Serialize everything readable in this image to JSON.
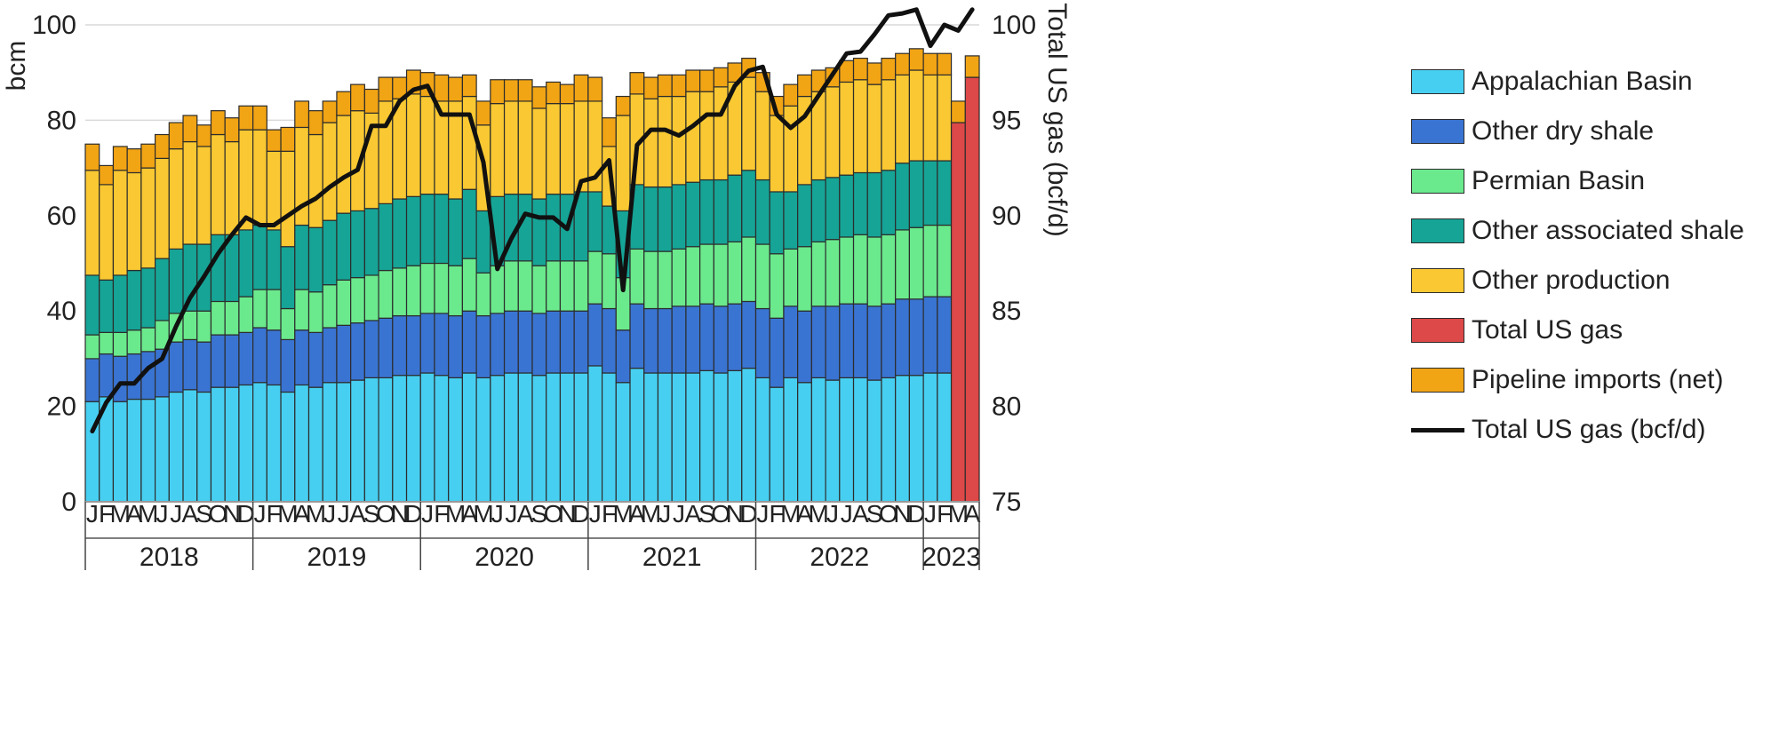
{
  "chart_data": {
    "type": "bar",
    "subtype": "stacked bar with line on secondary axis",
    "ylabel_left": "bcm",
    "ylabel_right": "Total US gas (bcf/d)",
    "ylim_left": [
      0,
      100
    ],
    "ylim_right": [
      75,
      100
    ],
    "yticks_left": [
      "0",
      "20",
      "40",
      "60",
      "80",
      "100"
    ],
    "yticks_right": [
      "75",
      "80",
      "85",
      "90",
      "95",
      "100"
    ],
    "grid": "horizontal",
    "legend_position": "right",
    "months": [
      "J",
      "F",
      "M",
      "A",
      "M",
      "J",
      "J",
      "A",
      "S",
      "O",
      "N",
      "D",
      "J",
      "F",
      "M",
      "A",
      "M",
      "J",
      "J",
      "A",
      "S",
      "O",
      "N",
      "D",
      "J",
      "F",
      "M",
      "A",
      "M",
      "J",
      "J",
      "A",
      "S",
      "O",
      "N",
      "D",
      "J",
      "F",
      "M",
      "A",
      "M",
      "J",
      "J",
      "A",
      "S",
      "O",
      "N",
      "D",
      "J",
      "F",
      "M",
      "A",
      "M",
      "J",
      "J",
      "A",
      "S",
      "O",
      "N",
      "D",
      "J",
      "F",
      "M",
      "A"
    ],
    "years": [
      {
        "label": "2018",
        "months": 12
      },
      {
        "label": "2019",
        "months": 12
      },
      {
        "label": "2020",
        "months": 12
      },
      {
        "label": "2021",
        "months": 12
      },
      {
        "label": "2022",
        "months": 12
      },
      {
        "label": "2023",
        "months": 4
      }
    ],
    "series": [
      {
        "name": "Appalachian Basin",
        "color": "#47cff1",
        "values": [
          21,
          22,
          21,
          21.5,
          21.5,
          22,
          23,
          23.5,
          23,
          24,
          24,
          24.5,
          25,
          24.5,
          23,
          24.5,
          24,
          25,
          25,
          25.5,
          26,
          26,
          26.5,
          26.5,
          27,
          26.5,
          26,
          27,
          26,
          26.5,
          27,
          27,
          26.5,
          27,
          27,
          27,
          28.5,
          27,
          25,
          28,
          27,
          27,
          27,
          27,
          27.5,
          27,
          27.5,
          28,
          26,
          24,
          26,
          25,
          26,
          25.5,
          26,
          26,
          25.5,
          26,
          26.5,
          26.5,
          27,
          27,
          0,
          0
        ]
      },
      {
        "name": "Other dry shale",
        "color": "#3a74d2",
        "values": [
          9,
          9,
          9.5,
          9.5,
          10,
          10,
          10.5,
          10.5,
          10.5,
          11,
          11,
          11,
          11.5,
          11.5,
          11,
          11.5,
          11.5,
          11.5,
          12,
          12,
          12,
          12.5,
          12.5,
          12.5,
          12.5,
          13,
          13,
          13,
          13,
          13,
          13,
          13,
          13,
          13,
          13,
          13,
          13,
          13.5,
          11,
          13.5,
          13.5,
          13.5,
          14,
          14,
          14,
          14,
          14,
          14,
          14.5,
          14.5,
          15,
          15,
          15,
          15.5,
          15.5,
          15.5,
          15.5,
          15.5,
          16,
          16,
          16,
          16,
          0,
          0
        ]
      },
      {
        "name": "Permian Basin",
        "color": "#6be98d",
        "values": [
          5,
          4.5,
          5,
          5,
          5,
          6,
          6,
          6,
          6.5,
          7,
          7,
          7.5,
          8,
          8.5,
          6.5,
          8.5,
          8.5,
          9,
          9.5,
          9.5,
          9.5,
          10,
          10,
          10.5,
          10.5,
          10.5,
          10.5,
          11,
          9,
          10,
          10.5,
          10.5,
          10,
          10.5,
          10.5,
          10.5,
          11,
          11.5,
          11,
          11.5,
          12,
          12,
          12,
          12.5,
          12.5,
          13,
          13,
          13.5,
          13.5,
          13.5,
          12,
          13.5,
          13.5,
          14,
          14,
          14.5,
          14.5,
          14.5,
          14.5,
          15,
          15,
          15,
          0,
          0
        ]
      },
      {
        "name": "Other associated shale",
        "color": "#16a496",
        "values": [
          12.5,
          11,
          12,
          12.5,
          12.5,
          13,
          13.5,
          14,
          14,
          14,
          14,
          14,
          13.5,
          12.5,
          13,
          13.5,
          13.5,
          13.5,
          14,
          14,
          14,
          14,
          14.5,
          14.5,
          14.5,
          14.5,
          14,
          14.5,
          13,
          14.5,
          14,
          14,
          14,
          14,
          14,
          14.5,
          12.5,
          10,
          14,
          13.5,
          13.5,
          13.5,
          13.5,
          13.5,
          13.5,
          13.5,
          14,
          14,
          13.5,
          13,
          12,
          13,
          13,
          13,
          13,
          13,
          13.5,
          13.5,
          14,
          14,
          13.5,
          13.5,
          0,
          0
        ]
      },
      {
        "name": "Other production",
        "color": "#f9c832",
        "values": [
          22,
          20,
          22,
          20.5,
          21,
          21,
          21,
          21.5,
          20.5,
          21,
          19.5,
          21,
          20,
          16.5,
          20,
          20.5,
          19.5,
          20.5,
          20.5,
          21,
          20,
          21.5,
          21,
          21.5,
          20.5,
          19.5,
          20.5,
          19.5,
          18,
          19.5,
          19.5,
          19.5,
          19,
          19,
          19,
          19,
          19,
          12.5,
          20,
          19,
          18.5,
          19,
          18.5,
          19,
          18.5,
          19.5,
          19.5,
          19.5,
          18.5,
          16,
          18,
          18.5,
          18.5,
          19,
          19.5,
          19.5,
          18.5,
          19,
          18.5,
          19,
          18,
          18,
          0,
          0
        ]
      },
      {
        "name": "Total US gas",
        "color": "#dd4848",
        "values": [
          0,
          0,
          0,
          0,
          0,
          0,
          0,
          0,
          0,
          0,
          0,
          0,
          0,
          0,
          0,
          0,
          0,
          0,
          0,
          0,
          0,
          0,
          0,
          0,
          0,
          0,
          0,
          0,
          0,
          0,
          0,
          0,
          0,
          0,
          0,
          0,
          0,
          0,
          0,
          0,
          0,
          0,
          0,
          0,
          0,
          0,
          0,
          0,
          0,
          0,
          0,
          0,
          0,
          0,
          0,
          0,
          0,
          0,
          0,
          0,
          0,
          0,
          79.5,
          89
        ]
      },
      {
        "name": "Pipeline imports (net)",
        "color": "#f1a414",
        "values": [
          5.5,
          4,
          5,
          5,
          5,
          5,
          5.5,
          5.5,
          4.5,
          5,
          5,
          5,
          5,
          4.5,
          5,
          5.5,
          5,
          4.5,
          5,
          5.5,
          5,
          5,
          4.5,
          5,
          5,
          5.5,
          5,
          4.5,
          5,
          5,
          4.5,
          4.5,
          4.5,
          4.5,
          4,
          5.5,
          5,
          6,
          4,
          4.5,
          4.5,
          4.5,
          4.5,
          4.5,
          4.5,
          4,
          4,
          4,
          4,
          4,
          4.5,
          4.5,
          4.5,
          4,
          4.5,
          4.5,
          4.5,
          4.5,
          4.5,
          4.5,
          4.5,
          4.5,
          4.5,
          4.5
        ]
      }
    ],
    "line": {
      "name": "Total US gas (bcf/d)",
      "color": "#111111",
      "values": [
        78.7,
        80.2,
        81.2,
        81.2,
        82,
        82.5,
        84.2,
        85.7,
        86.8,
        88,
        89,
        89.9,
        89.5,
        89.5,
        90,
        90.5,
        90.9,
        91.5,
        92,
        92.4,
        94.7,
        94.7,
        96,
        96.6,
        96.8,
        95.3,
        95.3,
        95.3,
        92.8,
        87.2,
        88.8,
        90.1,
        89.9,
        89.9,
        89.3,
        91.8,
        92,
        92.9,
        86.1,
        93.7,
        94.5,
        94.5,
        94.2,
        94.7,
        95.3,
        95.3,
        96.8,
        97.6,
        97.8,
        95.3,
        94.6,
        95.2,
        96.3,
        97.4,
        98.5,
        98.6,
        99.5,
        100.5,
        100.6,
        100.8,
        98.9,
        100,
        99.7,
        100.8
      ]
    }
  },
  "legend": [
    {
      "label": "Appalachian Basin",
      "color": "#47cff1",
      "kind": "box"
    },
    {
      "label": "Other dry shale",
      "color": "#3a74d2",
      "kind": "box"
    },
    {
      "label": "Permian Basin",
      "color": "#6be98d",
      "kind": "box"
    },
    {
      "label": "Other associated shale",
      "color": "#16a496",
      "kind": "box"
    },
    {
      "label": "Other production",
      "color": "#f9c832",
      "kind": "box"
    },
    {
      "label": "Total US gas",
      "color": "#dd4848",
      "kind": "box"
    },
    {
      "label": "Pipeline imports (net)",
      "color": "#f1a414",
      "kind": "box"
    },
    {
      "label": "Total US gas (bcf/d)",
      "color": "#111111",
      "kind": "line"
    }
  ]
}
